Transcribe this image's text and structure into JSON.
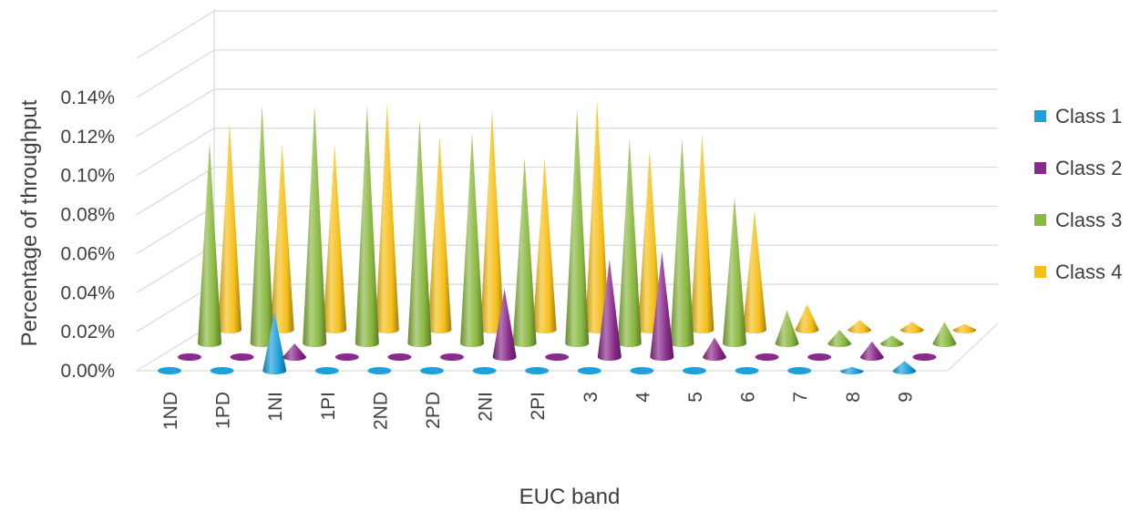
{
  "chart_data": {
    "type": "bar",
    "subtype": "3d-cone",
    "title": "",
    "xlabel": "EUC band",
    "ylabel": "Percentage of throughput",
    "categories": [
      "1ND",
      "1PD",
      "1NI",
      "1PI",
      "2ND",
      "2PD",
      "2NI",
      "2PI",
      "3",
      "4",
      "5",
      "6",
      "7",
      "8",
      "9"
    ],
    "ylim": [
      0,
      0.14
    ],
    "yticks": [
      "0.00%",
      "0.02%",
      "0.04%",
      "0.06%",
      "0.08%",
      "0.10%",
      "0.12%",
      "0.14%"
    ],
    "grid": true,
    "legend_position": "right",
    "series": [
      {
        "name": "Class 1",
        "color": "#1ea0dc",
        "values": [
          0,
          0,
          0.03,
          0,
          0,
          0,
          0,
          0,
          0,
          0,
          0,
          0,
          0,
          0.002,
          0.005
        ]
      },
      {
        "name": "Class 2",
        "color": "#8a2a8c",
        "values": [
          0.001,
          0.001,
          0.007,
          0.001,
          0.001,
          0.001,
          0.035,
          0.001,
          0.05,
          0.054,
          0.01,
          0.001,
          0.001,
          0.008,
          0.001
        ]
      },
      {
        "name": "Class 3",
        "color": "#8ab840",
        "values": [
          0.103,
          0.122,
          0.122,
          0.122,
          0.115,
          0.108,
          0.095,
          0.12,
          0.105,
          0.105,
          0.075,
          0.017,
          0.007,
          0.004,
          0.011
        ]
      },
      {
        "name": "Class 4",
        "color": "#f5bf18",
        "values": [
          0.106,
          0.095,
          0.095,
          0.116,
          0.099,
          0.113,
          0.088,
          0.118,
          0.092,
          0.1,
          0.061,
          0.013,
          0.005,
          0.004,
          0.003
        ]
      }
    ]
  }
}
